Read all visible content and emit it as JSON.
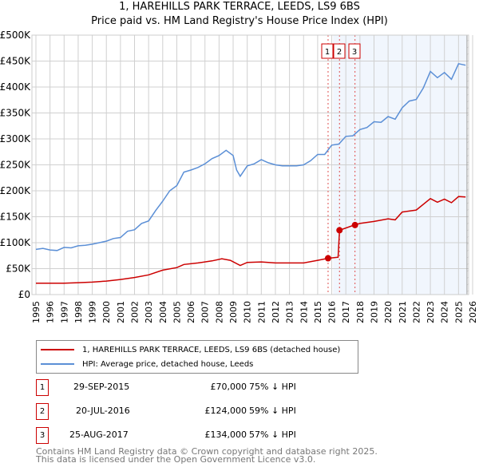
{
  "title": "1, HAREHILLS PARK TERRACE, LEEDS, LS9 6BS",
  "subtitle": "Price paid vs. HM Land Registry's House Price Index (HPI)",
  "chart_data": {
    "type": "line",
    "title": "1, HAREHILLS PARK TERRACE, LEEDS, LS9 6BS",
    "subtitle": "Price paid vs. HM Land Registry's House Price Index (HPI)",
    "xlim": [
      1995,
      2026
    ],
    "ylim": [
      0,
      500000
    ],
    "x_ticks": [
      "1995",
      "1996",
      "1997",
      "1998",
      "1999",
      "2000",
      "2001",
      "2002",
      "2003",
      "2004",
      "2005",
      "2006",
      "2007",
      "2008",
      "2009",
      "2010",
      "2011",
      "2012",
      "2013",
      "2014",
      "2015",
      "2016",
      "2017",
      "2018",
      "2019",
      "2020",
      "2021",
      "2022",
      "2023",
      "2024",
      "2025",
      "2026"
    ],
    "y_ticks": [
      {
        "v": 0,
        "label": "£0"
      },
      {
        "v": 50000,
        "label": "£50K"
      },
      {
        "v": 100000,
        "label": "£100K"
      },
      {
        "v": 150000,
        "label": "£150K"
      },
      {
        "v": 200000,
        "label": "£200K"
      },
      {
        "v": 250000,
        "label": "£250K"
      },
      {
        "v": 300000,
        "label": "£300K"
      },
      {
        "v": 350000,
        "label": "£350K"
      },
      {
        "v": 400000,
        "label": "£400K"
      },
      {
        "v": 450000,
        "label": "£450K"
      },
      {
        "v": 500000,
        "label": "£500K"
      }
    ],
    "grid": true,
    "shaded_from": 2016.1,
    "hatched_from": 2025.6,
    "series": [
      {
        "name": "1, HAREHILLS PARK TERRACE, LEEDS, LS9 6BS (detached house)",
        "color": "#cc0000",
        "x": [
          1995,
          1997,
          1998,
          1999,
          2000,
          2001,
          2002,
          2003,
          2004,
          2005,
          2005.5,
          2006.5,
          2007.5,
          2008.2,
          2008.8,
          2009.5,
          2010,
          2011,
          2012,
          2014,
          2015,
          2015.75,
          2016.45,
          2016.55,
          2017.6,
          2018,
          2019,
          2020,
          2020.5,
          2021,
          2022,
          2023,
          2023.5,
          2024,
          2024.5,
          2025,
          2025.5
        ],
        "y": [
          22000,
          22000,
          23000,
          24000,
          26000,
          29000,
          33000,
          38000,
          47000,
          52000,
          58000,
          61000,
          65000,
          69000,
          66000,
          56000,
          62000,
          63000,
          61000,
          61000,
          66000,
          70000,
          72000,
          124000,
          134000,
          137000,
          141000,
          146000,
          144000,
          159000,
          163000,
          185000,
          178000,
          184000,
          177000,
          189000,
          188000
        ]
      },
      {
        "name": "HPI: Average price, detached house, Leeds",
        "color": "#5b8fd6",
        "x": [
          1995,
          1995.5,
          1996,
          1996.5,
          1997,
          1997.5,
          1998,
          1998.5,
          1999,
          1999.5,
          2000,
          2000.5,
          2001,
          2001.5,
          2002,
          2002.5,
          2003,
          2003.5,
          2004,
          2004.5,
          2005,
          2005.5,
          2006,
          2006.5,
          2007,
          2007.5,
          2008,
          2008.5,
          2009,
          2009.25,
          2009.5,
          2010,
          2010.5,
          2011,
          2011.5,
          2012,
          2012.5,
          2013,
          2013.5,
          2014,
          2014.5,
          2015,
          2015.5,
          2016,
          2016.5,
          2017,
          2017.5,
          2018,
          2018.5,
          2019,
          2019.5,
          2020,
          2020.5,
          2021,
          2021.5,
          2022,
          2022.5,
          2023,
          2023.5,
          2024,
          2024.5,
          2025,
          2025.5
        ],
        "y": [
          87000,
          89000,
          86000,
          85000,
          91000,
          90000,
          94000,
          95000,
          97000,
          100000,
          103000,
          108000,
          110000,
          122000,
          125000,
          137000,
          142000,
          162000,
          180000,
          200000,
          210000,
          236000,
          240000,
          245000,
          252000,
          262000,
          268000,
          278000,
          268000,
          240000,
          228000,
          248000,
          252000,
          260000,
          254000,
          250000,
          248000,
          248000,
          248000,
          250000,
          258000,
          270000,
          270000,
          288000,
          290000,
          305000,
          306000,
          318000,
          322000,
          333000,
          332000,
          343000,
          338000,
          360000,
          373000,
          376000,
          398000,
          430000,
          418000,
          428000,
          415000,
          445000,
          442000
        ]
      }
    ],
    "sales": [
      {
        "label": "1",
        "date": "29-SEP-2015",
        "x": 2015.74,
        "price": "£70,000",
        "value": 70000,
        "hpi": "75% ↓ HPI"
      },
      {
        "label": "2",
        "date": "20-JUL-2016",
        "x": 2016.55,
        "price": "£124,000",
        "value": 124000,
        "hpi": "59% ↓ HPI"
      },
      {
        "label": "3",
        "date": "25-AUG-2017",
        "x": 2017.65,
        "price": "£134,000",
        "value": 134000,
        "hpi": "57% ↓ HPI"
      }
    ]
  },
  "legend": {
    "red": "1, HAREHILLS PARK TERRACE, LEEDS, LS9 6BS (detached house)",
    "blue": "HPI: Average price, detached house, Leeds"
  },
  "footer": [
    "Contains HM Land Registry data © Crown copyright and database right 2025.",
    "This data is licensed under the Open Government Licence v3.0."
  ]
}
